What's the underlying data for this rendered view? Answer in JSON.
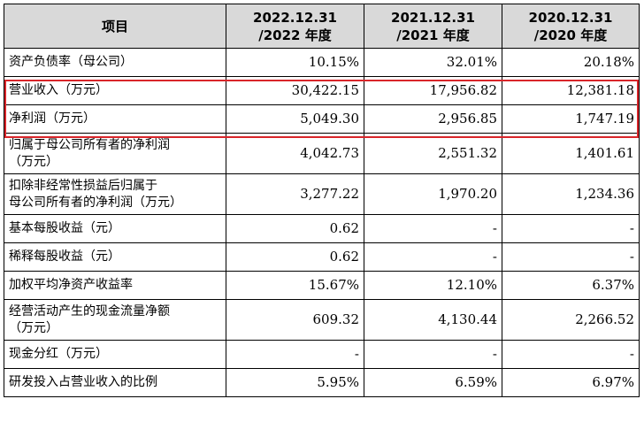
{
  "table": {
    "headers": [
      "项目",
      "2022.12.31\n/2022 年度",
      "2021.12.31\n/2021 年度",
      "2020.12.31\n/2020 年度"
    ],
    "rows": [
      {
        "label": "资产负债率（母公司）",
        "values": [
          "10.15%",
          "32.01%",
          "20.18%"
        ]
      },
      {
        "label": "营业收入（万元）",
        "values": [
          "30,422.15",
          "17,956.82",
          "12,381.18"
        ]
      },
      {
        "label": "净利润（万元）",
        "values": [
          "5,049.30",
          "2,956.85",
          "1,747.19"
        ]
      },
      {
        "label": "归属于母公司所有者的净利润\n（万元）",
        "values": [
          "4,042.73",
          "2,551.32",
          "1,401.61"
        ]
      },
      {
        "label": "扣除非经常性损益后归属于\n母公司所有者的净利润（万元）",
        "values": [
          "3,277.22",
          "1,970.20",
          "1,234.36"
        ]
      },
      {
        "label": "基本每股收益（元）",
        "values": [
          "0.62",
          "-",
          "-"
        ]
      },
      {
        "label": "稀释每股收益（元）",
        "values": [
          "0.62",
          "-",
          "-"
        ]
      },
      {
        "label": "加权平均净资产收益率",
        "values": [
          "15.67%",
          "12.10%",
          "6.37%"
        ]
      },
      {
        "label": "经营活动产生的现金流量净额\n（万元）",
        "values": [
          "609.32",
          "4,130.44",
          "2,266.52"
        ]
      },
      {
        "label": "现金分红（万元）",
        "values": [
          "-",
          "-",
          "-"
        ]
      },
      {
        "label": "研发投入占营业收入的比例",
        "values": [
          "5.95%",
          "6.59%",
          "6.97%"
        ]
      }
    ]
  },
  "highlight": {
    "color": "#d9252a"
  }
}
